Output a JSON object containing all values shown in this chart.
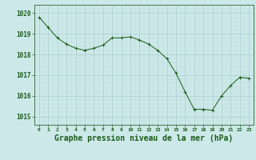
{
  "x": [
    0,
    1,
    2,
    3,
    4,
    5,
    6,
    7,
    8,
    9,
    10,
    11,
    12,
    13,
    14,
    15,
    16,
    17,
    18,
    19,
    20,
    21,
    22,
    23
  ],
  "y": [
    1019.8,
    1019.3,
    1018.8,
    1018.5,
    1018.3,
    1018.2,
    1018.3,
    1018.45,
    1018.8,
    1018.8,
    1018.85,
    1018.7,
    1018.5,
    1018.2,
    1017.8,
    1017.1,
    1016.2,
    1015.35,
    1015.35,
    1015.3,
    1016.0,
    1016.5,
    1016.9,
    1016.85
  ],
  "line_color": "#1a5c1a",
  "marker": "+",
  "marker_size": 3,
  "bg_color": "#cce8e8",
  "grid_major_color": "#aacccc",
  "grid_minor_color": "#bedddd",
  "axis_color": "#336633",
  "tick_color": "#1a5c1a",
  "xlabel": "Graphe pression niveau de la mer (hPa)",
  "xlabel_fontsize": 7,
  "ylim": [
    1014.6,
    1020.4
  ],
  "xlim": [
    -0.5,
    23.5
  ],
  "yticks": [
    1015,
    1016,
    1017,
    1018,
    1019,
    1020
  ],
  "xtick_labels": [
    "0",
    "1",
    "2",
    "3",
    "4",
    "5",
    "6",
    "7",
    "8",
    "9",
    "10",
    "11",
    "12",
    "13",
    "14",
    "15",
    "16",
    "17",
    "18",
    "19",
    "20",
    "21",
    "22",
    "23"
  ]
}
